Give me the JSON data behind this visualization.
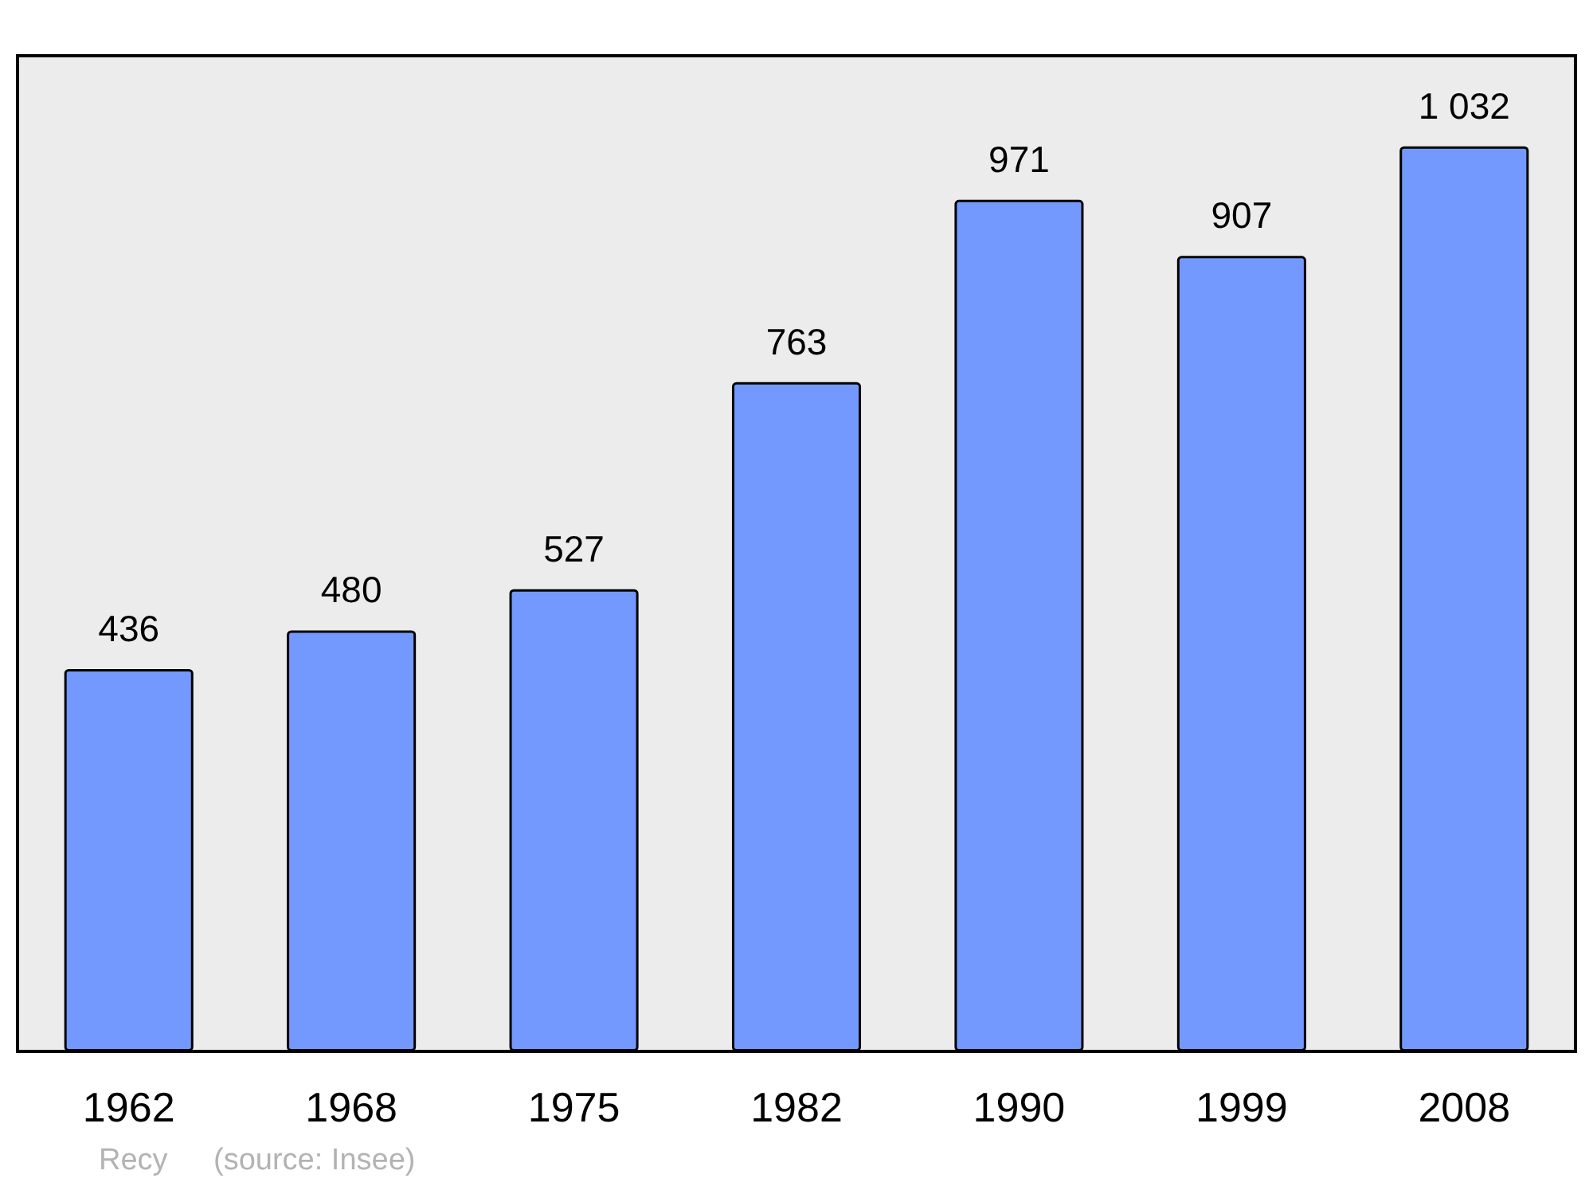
{
  "chart_data": {
    "type": "bar",
    "categories": [
      "1962",
      "1968",
      "1975",
      "1982",
      "1990",
      "1999",
      "2008"
    ],
    "values": [
      436,
      480,
      527,
      763,
      971,
      907,
      1032
    ],
    "value_labels": [
      "436",
      "480",
      "527",
      "763",
      "971",
      "907",
      "1 032"
    ],
    "color": "#7399ff",
    "grid": false,
    "annotations": [
      "Recy",
      "(source: Insee)"
    ]
  }
}
